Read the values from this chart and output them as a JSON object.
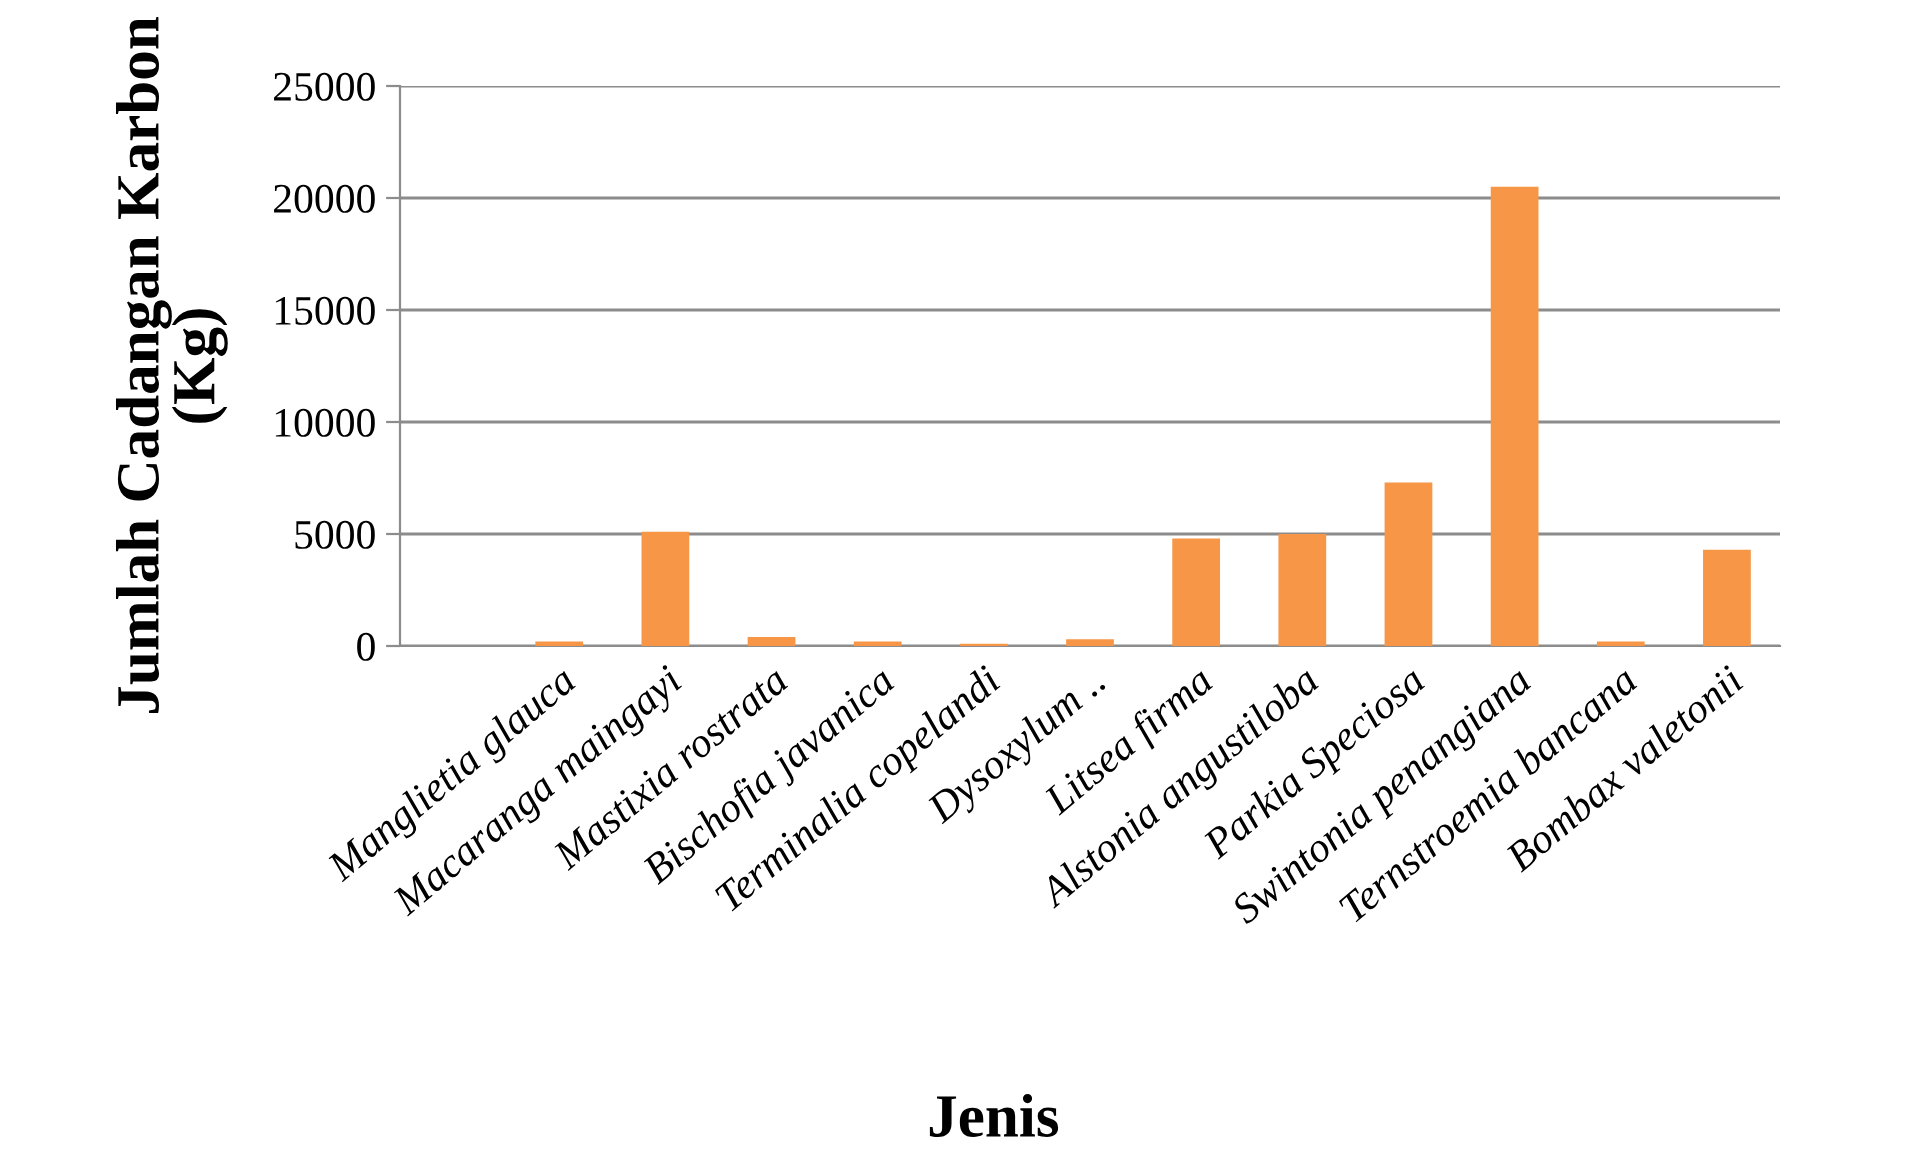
{
  "chart_data": {
    "type": "bar",
    "xlabel": "Jenis",
    "ylabel": "Jumlah Cadangan Karbon\n(Kg)",
    "categories": [
      null,
      "Manglietia glauca",
      "Macaranga maingayi",
      "Mastixia rostrata",
      "Bischofia javanica",
      "Terminalia copelandi",
      "Dysoxylum ..",
      "Litsea firma",
      "Alstonia angustiloba",
      "Parkia Speciosa",
      "Swintonia penangiana",
      "Ternstroemia bancana",
      "Bombax valetonii"
    ],
    "values": [
      null,
      200,
      5100,
      400,
      200,
      100,
      300,
      4800,
      5000,
      7300,
      20500,
      200,
      4300
    ],
    "color": "#f79646",
    "ylim": [
      0,
      25000
    ],
    "yticks": [
      0,
      5000,
      10000,
      15000,
      20000,
      25000
    ],
    "grid": "y",
    "legend": false
  }
}
